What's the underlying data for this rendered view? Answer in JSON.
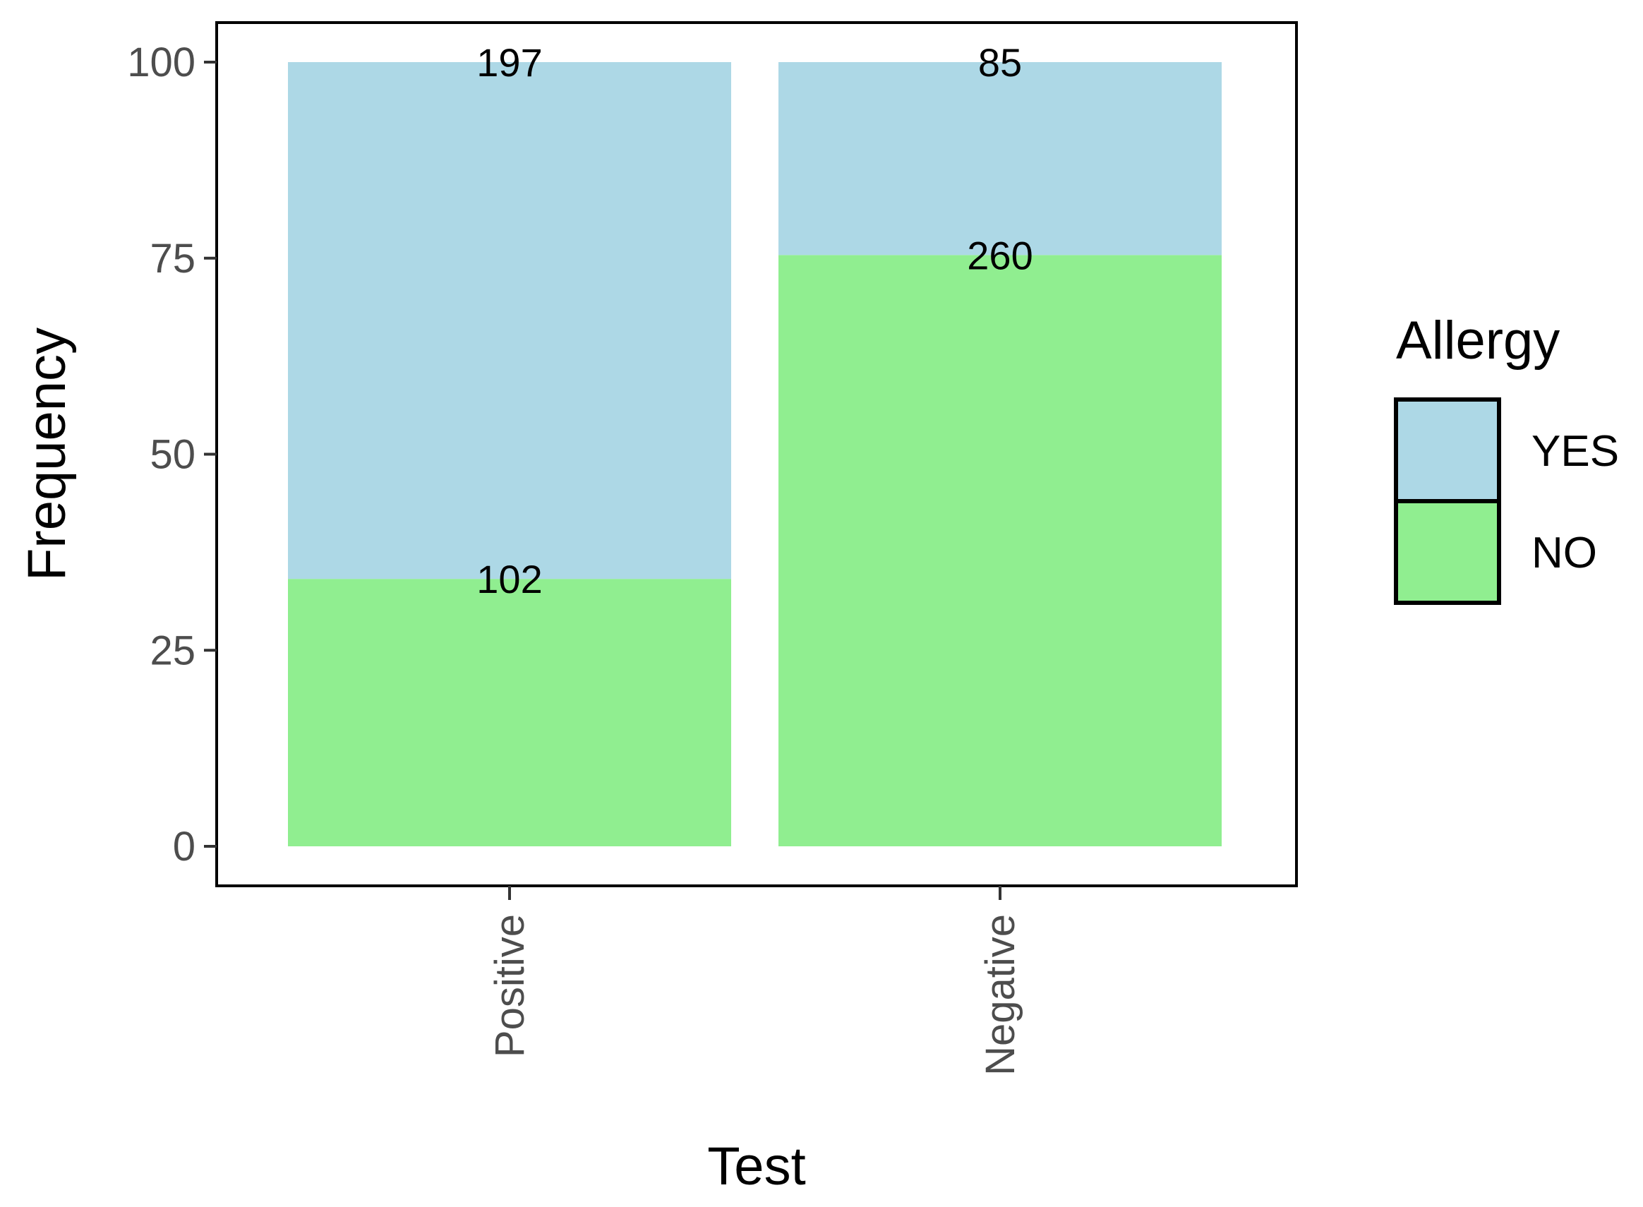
{
  "chart_data": {
    "type": "bar",
    "stacked": true,
    "normalized": true,
    "categories": [
      "Positive",
      "Negative"
    ],
    "series": [
      {
        "name": "NO",
        "values": [
          34.1,
          75.4
        ],
        "labels": [
          "102",
          "260"
        ],
        "color": "#90EE90"
      },
      {
        "name": "YES",
        "values": [
          65.9,
          24.6
        ],
        "labels": [
          "197",
          "85"
        ],
        "color": "#ADD8E6"
      }
    ],
    "xlabel": "Test",
    "ylabel": "Frequency",
    "ylim": [
      0,
      105
    ],
    "yticks": [
      "0",
      "25",
      "50",
      "75",
      "100"
    ],
    "grid": false,
    "legend": {
      "title": "Allergy",
      "placement": "right",
      "entries": [
        {
          "label": "YES",
          "color": "#ADD8E6"
        },
        {
          "label": "NO",
          "color": "#90EE90"
        }
      ]
    }
  }
}
